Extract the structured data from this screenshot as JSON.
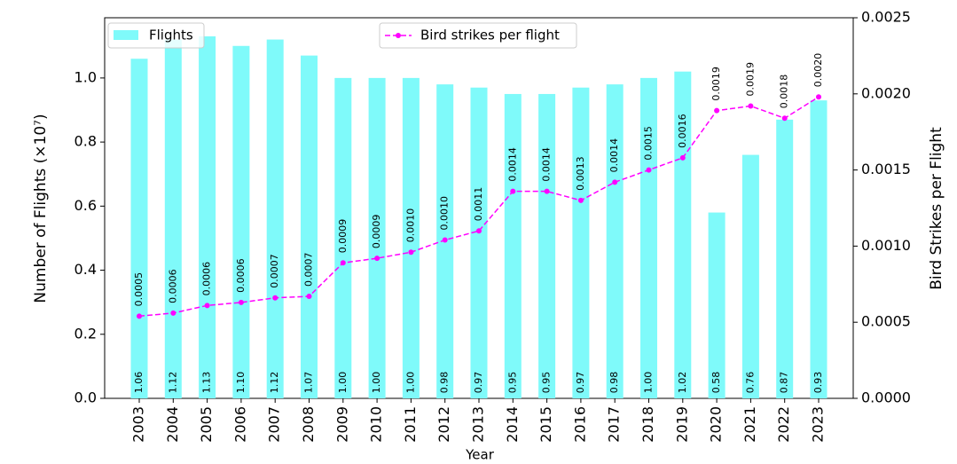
{
  "chart_data": {
    "type": "bar_line",
    "x_label": "Year",
    "y_label": "Number of Flights (×10⁷)",
    "y2_label": "Bird Strikes per Flight",
    "categories": [
      "2003",
      "2004",
      "2005",
      "2006",
      "2007",
      "2008",
      "2009",
      "2010",
      "2011",
      "2012",
      "2013",
      "2014",
      "2015",
      "2016",
      "2017",
      "2018",
      "2019",
      "2020",
      "2021",
      "2022",
      "2023"
    ],
    "series": [
      {
        "name": "Flights",
        "type": "bar",
        "color": "#7ffafa",
        "values": [
          1.06,
          1.12,
          1.13,
          1.1,
          1.12,
          1.07,
          1.0,
          1.0,
          1.0,
          0.98,
          0.97,
          0.95,
          0.95,
          0.97,
          0.98,
          1.0,
          1.02,
          0.58,
          0.76,
          0.87,
          0.93
        ],
        "value_labels": [
          "1.06",
          "1.12",
          "1.13",
          "1.10",
          "1.12",
          "1.07",
          "1.00",
          "1.00",
          "1.00",
          "0.98",
          "0.97",
          "0.95",
          "0.95",
          "0.97",
          "0.98",
          "1.00",
          "1.02",
          "0.58",
          "0.76",
          "0.87",
          "0.93"
        ]
      },
      {
        "name": "Bird strikes per flight",
        "type": "line",
        "axis": "y2",
        "color": "#ff00ff",
        "values": [
          0.00054,
          0.00056,
          0.00061,
          0.00063,
          0.00066,
          0.00067,
          0.00089,
          0.00092,
          0.00096,
          0.00104,
          0.0011,
          0.00136,
          0.00136,
          0.0013,
          0.00142,
          0.0015,
          0.00158,
          0.00189,
          0.00192,
          0.00184,
          0.00198
        ],
        "value_labels": [
          "0.0005",
          "0.0006",
          "0.0006",
          "0.0006",
          "0.0007",
          "0.0007",
          "0.0009",
          "0.0009",
          "0.0010",
          "0.0010",
          "0.0011",
          "0.0014",
          "0.0014",
          "0.0013",
          "0.0014",
          "0.0015",
          "0.0016",
          "0.0019",
          "0.0019",
          "0.0018",
          "0.0020"
        ]
      }
    ],
    "ylim": [
      0,
      1.188
    ],
    "yticks": [
      {
        "value": 0,
        "label": "0.0"
      },
      0.2,
      0.4,
      0.6,
      0.8,
      {
        "value": 1,
        "label": "1.0"
      }
    ],
    "y2lim": [
      0,
      0.0025
    ],
    "y2ticks": [
      {
        "value": 0,
        "label": "0.0000"
      },
      {
        "value": 0.0005,
        "label": "0.0005"
      },
      {
        "value": 0.001,
        "label": "0.0010"
      },
      {
        "value": 0.0015,
        "label": "0.0015"
      },
      {
        "value": 0.002,
        "label": "0.0020"
      },
      {
        "value": 0.0025,
        "label": "0.0025"
      }
    ]
  }
}
